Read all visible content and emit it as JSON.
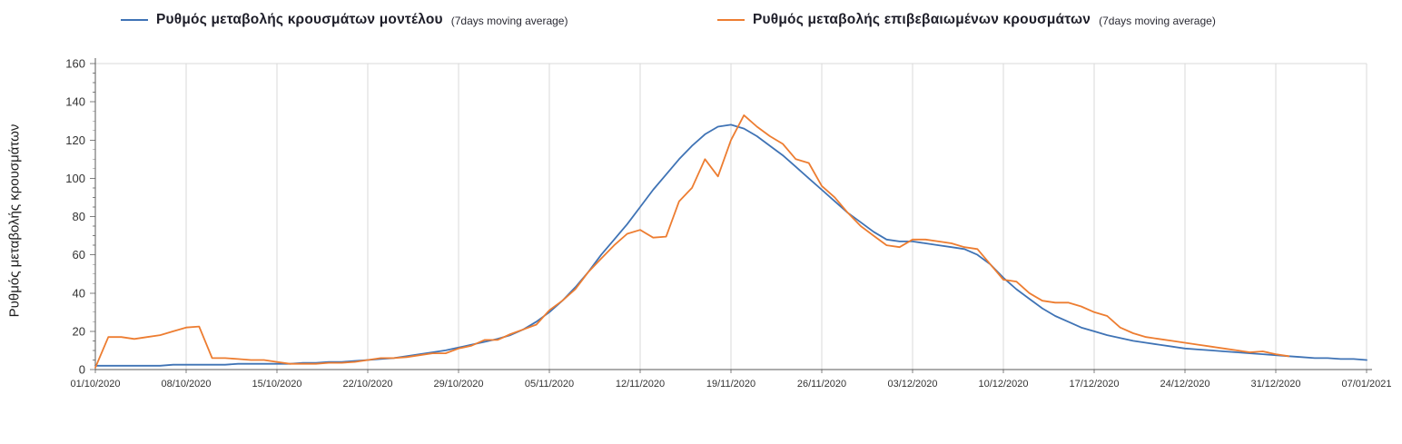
{
  "legend": {
    "series1": {
      "label": "Ρυθμός μεταβολής κρουσμάτων μοντέλου",
      "suffix": "(7days moving average)",
      "color": "#3f73b5"
    },
    "series2": {
      "label": "Ρυθμός μεταβολής επιβεβαιωμένων κρουσμάτων",
      "suffix": "(7days moving average)",
      "color": "#ed7d31"
    }
  },
  "axes": {
    "y_title": "Ρυθμός μεταβολής κρουσμάτων"
  },
  "colors": {
    "gridline": "#d9d9d9",
    "axis": "#595959",
    "tick": "#808080",
    "tick_label": "#333333",
    "background": "#ffffff"
  },
  "chart_data": {
    "type": "line",
    "title": "",
    "xlabel": "",
    "ylabel": "Ρυθμός μεταβολής κρουσμάτων",
    "ylim": [
      0,
      160
    ],
    "y_tick_interval": 20,
    "y_minor_tick_interval": 5,
    "grid": "vertical-only, plus top border line at y=160",
    "legend_position": "top",
    "points_are_daily": true,
    "days_per_tick": 7,
    "x_tick_labels": [
      "01/10/2020",
      "08/10/2020",
      "15/10/2020",
      "22/10/2020",
      "29/10/2020",
      "05/11/2020",
      "12/11/2020",
      "19/11/2020",
      "26/11/2020",
      "03/12/2020",
      "10/12/2020",
      "17/12/2020",
      "24/12/2020",
      "31/12/2020",
      "07/01/2021"
    ],
    "series": [
      {
        "name": "Ρυθμός μεταβολής κρουσμάτων μοντέλου (7days moving average)",
        "color": "#3f73b5",
        "values": [
          2,
          2,
          2,
          2,
          2,
          2,
          2.5,
          2.5,
          2.5,
          2.5,
          2.5,
          3,
          3,
          3,
          3,
          3,
          3.5,
          3.5,
          4,
          4,
          4.5,
          5,
          5.5,
          6,
          7,
          8,
          9,
          10,
          11.5,
          13,
          14.5,
          16,
          18,
          21,
          25,
          30,
          36,
          43,
          51,
          60,
          68,
          76,
          85,
          94,
          102,
          110,
          117,
          123,
          127,
          128,
          126,
          122,
          117,
          112,
          106,
          100,
          94,
          88,
          82,
          77,
          72,
          68,
          67,
          67,
          66,
          65,
          64,
          63,
          60,
          55,
          48,
          42,
          37,
          32,
          28,
          25,
          22,
          20,
          18,
          16.5,
          15,
          14,
          13,
          12,
          11,
          10.5,
          10,
          9.5,
          9,
          8.5,
          8,
          7.5,
          7,
          6.5,
          6,
          6,
          5.5,
          5.5,
          5
        ]
      },
      {
        "name": "Ρυθμός μεταβολής επιβεβαιωμένων κρουσμάτων (7days moving average)",
        "color": "#ed7d31",
        "values": [
          1,
          17,
          17,
          16,
          17,
          18,
          20,
          22,
          22.5,
          6,
          6,
          5.5,
          5,
          5,
          4,
          3,
          3,
          3,
          3.5,
          3.5,
          4,
          5,
          6,
          6,
          6.5,
          7.5,
          8.5,
          8.5,
          11,
          12.5,
          15.5,
          15.5,
          18.5,
          21,
          23.5,
          31,
          36,
          42,
          51,
          58,
          65,
          71,
          73,
          69,
          69.5,
          88,
          95,
          110,
          101,
          120,
          133,
          127,
          122,
          118,
          110,
          108,
          96,
          90,
          82,
          75,
          70,
          65,
          64,
          68,
          68,
          67,
          66,
          64,
          63,
          55,
          47,
          46,
          40,
          36,
          35,
          35,
          33,
          30,
          28,
          22,
          19,
          17,
          16,
          15,
          14,
          13,
          12,
          11,
          10,
          9,
          9.5,
          8,
          7
        ]
      }
    ]
  }
}
